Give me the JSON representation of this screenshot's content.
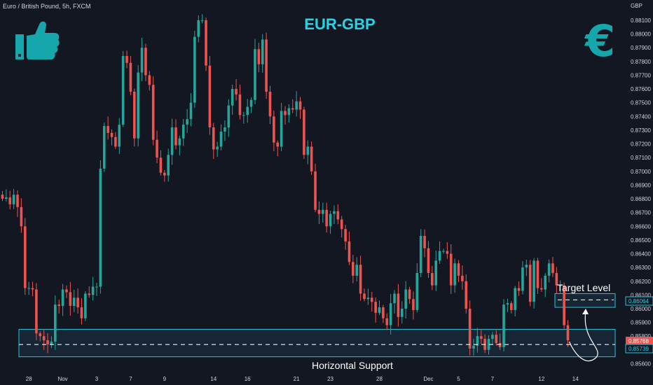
{
  "header": {
    "symbol": "Euro / British Pound, 5h, FXCM",
    "pair_title": "EUR-GBP",
    "currency_axis_label": "GBP"
  },
  "icons": {
    "left": "thumbs-up-icon",
    "right": "euro-icon",
    "accent_color": "#16a7ad"
  },
  "annotations": {
    "target_label": "Target Level",
    "support_label": "Horizontal Support",
    "target_price": "0.86064",
    "current_price": "0.85768",
    "support_price": "0.85739"
  },
  "colors": {
    "background": "#131722",
    "up": "#26a69a",
    "down": "#ef5350",
    "zone_border": "#26c6da",
    "zone_fill": "#1b3344",
    "text": "#d1d4dc"
  },
  "chart_data": {
    "type": "candlestick",
    "ylabel": "GBP",
    "ylim": [
      0.8555,
      0.8815
    ],
    "y_ticks": [
      "0.88100",
      "0.88000",
      "0.87900",
      "0.87800",
      "0.87700",
      "0.87600",
      "0.87500",
      "0.87400",
      "0.87300",
      "0.87200",
      "0.87100",
      "0.87000",
      "0.86900",
      "0.86800",
      "0.86700",
      "0.86600",
      "0.86500",
      "0.86400",
      "0.86300",
      "0.86200",
      "0.86100",
      "0.86000",
      "0.85900",
      "0.85800",
      "0.85700",
      "0.85600"
    ],
    "x_ticks": [
      {
        "label": "28",
        "i": 7
      },
      {
        "label": "Nov",
        "i": 16
      },
      {
        "label": "3",
        "i": 25
      },
      {
        "label": "7",
        "i": 34
      },
      {
        "label": "9",
        "i": 43
      },
      {
        "label": "14",
        "i": 56
      },
      {
        "label": "16",
        "i": 65
      },
      {
        "label": "21",
        "i": 78
      },
      {
        "label": "23",
        "i": 87
      },
      {
        "label": "28",
        "i": 100
      },
      {
        "label": "Dec",
        "i": 113
      },
      {
        "label": "5",
        "i": 121
      },
      {
        "label": "7",
        "i": 130
      },
      {
        "label": "12",
        "i": 143
      },
      {
        "label": "14",
        "i": 152
      }
    ],
    "support_zone": [
      0.8565,
      0.8585
    ],
    "target_zone": [
      0.8601,
      0.8611
    ],
    "target_level": 0.86064,
    "support_level": 0.85739,
    "current_price": 0.85768,
    "closes": [
      0.868,
      0.8681,
      0.8676,
      0.8683,
      0.8674,
      0.866,
      0.8615,
      0.8615,
      0.8614,
      0.8582,
      0.858,
      0.8577,
      0.8574,
      0.8576,
      0.8603,
      0.8602,
      0.8614,
      0.8612,
      0.8602,
      0.8608,
      0.8601,
      0.8593,
      0.8611,
      0.861,
      0.8616,
      0.8616,
      0.8702,
      0.8733,
      0.8728,
      0.8725,
      0.8718,
      0.8734,
      0.8784,
      0.8779,
      0.8758,
      0.8724,
      0.8772,
      0.879,
      0.877,
      0.8763,
      0.8723,
      0.871,
      0.8699,
      0.8697,
      0.8712,
      0.8732,
      0.8719,
      0.8724,
      0.8734,
      0.8738,
      0.875,
      0.8798,
      0.881,
      0.881,
      0.8777,
      0.8732,
      0.8716,
      0.8718,
      0.8729,
      0.8732,
      0.8748,
      0.876,
      0.8756,
      0.8741,
      0.8741,
      0.8747,
      0.8752,
      0.8789,
      0.8778,
      0.8796,
      0.8758,
      0.874,
      0.8721,
      0.8718,
      0.8744,
      0.8741,
      0.8746,
      0.8745,
      0.8751,
      0.8745,
      0.8712,
      0.8718,
      0.87,
      0.8672,
      0.8669,
      0.8672,
      0.866,
      0.8669,
      0.8671,
      0.8665,
      0.8658,
      0.8649,
      0.8634,
      0.8624,
      0.8632,
      0.8611,
      0.8607,
      0.8608,
      0.8605,
      0.8597,
      0.8601,
      0.8593,
      0.8588,
      0.8604,
      0.8611,
      0.8594,
      0.86,
      0.8614,
      0.8607,
      0.8599,
      0.8626,
      0.8653,
      0.8644,
      0.8626,
      0.8617,
      0.8635,
      0.8642,
      0.8642,
      0.864,
      0.8617,
      0.8633,
      0.8624,
      0.862,
      0.86,
      0.8571,
      0.8573,
      0.858,
      0.8578,
      0.857,
      0.8578,
      0.8581,
      0.8575,
      0.8572,
      0.8603,
      0.8604,
      0.8599,
      0.8615,
      0.8613,
      0.863,
      0.8632,
      0.8605,
      0.8635,
      0.8615,
      0.8614,
      0.8624,
      0.8633,
      0.8626,
      0.8617,
      0.8617,
      0.8588,
      0.8577
    ]
  }
}
